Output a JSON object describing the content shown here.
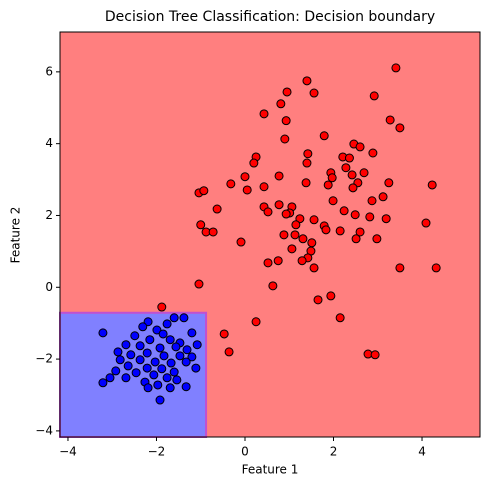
{
  "chart_data": {
    "type": "scatter",
    "title": "Decision Tree Classification: Decision boundary",
    "x_label": "Feature 1",
    "y_label": "Feature 2",
    "xlim": [
      -4.18,
      5.31
    ],
    "ylim": [
      -4.17,
      7.11
    ],
    "xticks": [
      {
        "value": -4,
        "label": "−4"
      },
      {
        "value": -2,
        "label": "−2"
      },
      0,
      2,
      4
    ],
    "yticks": [
      {
        "value": -4,
        "label": "−4"
      },
      {
        "value": -2,
        "label": "−2"
      },
      0,
      2,
      4,
      6
    ],
    "grid": false,
    "background_color": "#ff7f7f",
    "region": {
      "color": "#8080ff",
      "edge_color": "#c050d0",
      "x": -0.88,
      "y": -0.71
    },
    "series": [
      {
        "color": "#ff0000",
        "x": [
          3.41,
          1.4,
          0.95,
          1.56,
          2.92,
          0.81,
          0.43,
          3.28,
          0.93,
          3.5,
          1.79,
          2.46,
          0.9,
          2.6,
          1.42,
          2.21,
          2.89,
          0.25,
          0.2,
          2.36,
          1.4,
          1.94,
          2.28,
          2.42,
          1.97,
          2.69,
          0.0,
          0.77,
          -0.32,
          0.43,
          1.88,
          3.25,
          2.55,
          4.23,
          1.38,
          0.05,
          -1.04,
          -0.93,
          2.44,
          3.12,
          1.99,
          2.87,
          0.77,
          0.43,
          1.06,
          -0.63,
          1.01,
          2.24,
          2.82,
          2.49,
          0.93,
          1.56,
          3.19,
          1.24,
          0.52,
          4.09,
          -1.0,
          1.15,
          1.79,
          1.83,
          2.15,
          -0.88,
          0.88,
          2.6,
          2.51,
          -0.72,
          2.98,
          1.13,
          -0.09,
          1.31,
          1.51,
          1.06,
          1.49,
          1.42,
          1.29,
          0.75,
          0.52,
          1.56,
          3.5,
          4.32,
          0.63,
          -1.04,
          1.65,
          1.94,
          2.15,
          0.25,
          -0.47,
          -0.36,
          2.78,
          2.94,
          -1.88
        ],
        "y": [
          6.11,
          5.75,
          5.44,
          5.41,
          5.33,
          5.11,
          4.83,
          4.66,
          4.64,
          4.44,
          4.22,
          3.99,
          4.13,
          3.91,
          3.72,
          3.63,
          3.74,
          3.63,
          3.46,
          3.6,
          3.46,
          3.19,
          3.33,
          3.13,
          3.05,
          3.19,
          3.08,
          3.1,
          2.88,
          2.8,
          2.85,
          2.91,
          2.91,
          2.85,
          2.91,
          2.71,
          2.63,
          2.69,
          2.77,
          2.52,
          2.41,
          2.41,
          2.3,
          2.24,
          2.24,
          2.18,
          2.07,
          2.13,
          1.96,
          2.02,
          2.04,
          1.88,
          1.91,
          1.91,
          2.1,
          1.79,
          1.74,
          1.74,
          1.71,
          1.6,
          1.57,
          1.54,
          1.46,
          1.54,
          1.35,
          1.54,
          1.35,
          1.46,
          1.26,
          1.35,
          1.24,
          1.07,
          1.01,
          0.82,
          0.74,
          0.74,
          0.68,
          0.54,
          0.54,
          0.54,
          0.04,
          0.09,
          -0.35,
          -0.24,
          -0.85,
          -0.96,
          -1.3,
          -1.8,
          -1.86,
          -1.88,
          -0.55
        ]
      },
      {
        "color": "#0000ff",
        "x": [
          -3.21,
          -1.76,
          -1.6,
          -1.38,
          -2.19,
          -2.31,
          -1.99,
          -1.85,
          -1.2,
          -2.49,
          -2.15,
          -1.69,
          -1.47,
          -1.08,
          -2.69,
          -2.37,
          -1.92,
          -1.56,
          -1.31,
          -2.87,
          -2.21,
          -2.58,
          -1.83,
          -1.47,
          -1.2,
          -2.82,
          -2.37,
          -2.03,
          -1.67,
          -1.33,
          -2.64,
          -2.21,
          -1.88,
          -1.6,
          -1.11,
          -2.92,
          -2.46,
          -2.06,
          -3.05,
          -1.76,
          -2.69,
          -2.26,
          -1.54,
          -3.21,
          -1.97,
          -1.33,
          -2.19,
          -1.69,
          -1.92
        ],
        "y": [
          -1.27,
          -1.02,
          -0.85,
          -0.85,
          -0.96,
          -1.1,
          -1.19,
          -1.3,
          -1.27,
          -1.35,
          -1.46,
          -1.46,
          -1.55,
          -1.6,
          -1.6,
          -1.63,
          -1.69,
          -1.66,
          -1.74,
          -1.8,
          -1.83,
          -1.88,
          -1.91,
          -1.91,
          -1.94,
          -2.02,
          -2.02,
          -2.08,
          -2.11,
          -2.08,
          -2.19,
          -2.25,
          -2.27,
          -2.36,
          -2.25,
          -2.33,
          -2.38,
          -2.44,
          -2.52,
          -2.52,
          -2.52,
          -2.64,
          -2.58,
          -2.66,
          -2.72,
          -2.77,
          -2.8,
          -2.8,
          -3.14
        ]
      }
    ]
  }
}
